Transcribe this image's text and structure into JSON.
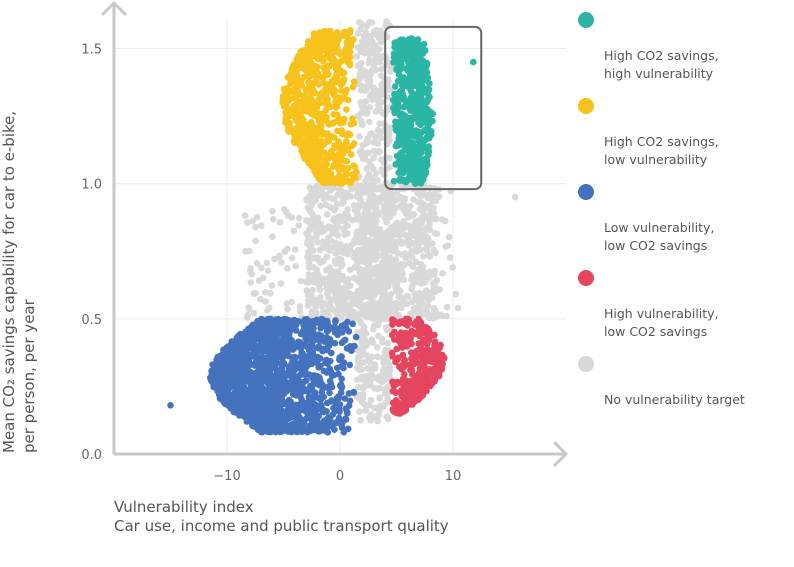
{
  "chart_data": {
    "type": "scatter",
    "xlabel": "Vulnerability index",
    "xlabel_sub": "Car use, income and public transport quality",
    "ylabel": "Mean CO₂ savings capability for car to e-bike,",
    "ylabel_sub": "per person, per year",
    "xlim": [
      -20,
      20
    ],
    "ylim": [
      0,
      1.65
    ],
    "x_ticks": [
      -10,
      0,
      10
    ],
    "x_tick_labels": [
      "−10",
      "0",
      "10"
    ],
    "y_ticks": [
      0.0,
      0.5,
      1.0,
      1.5
    ],
    "y_tick_labels": [
      "0.0",
      "0.5",
      "1.0",
      "1.5"
    ],
    "grid": true,
    "legend_position": "right",
    "highlight_box": {
      "x": [
        4,
        12.5
      ],
      "y": [
        0.98,
        1.58
      ]
    },
    "series": [
      {
        "name": "High CO2 savings,\nhigh vulnerability",
        "color": "#2ab5a5",
        "region": {
          "x": [
            4.5,
            9.0
          ],
          "y": [
            1.0,
            1.55
          ]
        },
        "outliers": [
          [
            11.8,
            1.45
          ]
        ]
      },
      {
        "name": "High CO2 savings,\nlow vulnerability",
        "color": "#f8c21c",
        "region": {
          "x": [
            -5.5,
            1.5
          ],
          "y": [
            1.0,
            1.58
          ]
        }
      },
      {
        "name": "Low vulnerability,\nlow CO2 savings",
        "color": "#4472be",
        "region": {
          "x": [
            -12,
            1.5
          ],
          "y": [
            0.07,
            0.5
          ]
        },
        "outliers": [
          [
            -15,
            0.18
          ]
        ]
      },
      {
        "name": "High vulnerability,\nlow CO2 savings",
        "color": "#e5455f",
        "region": {
          "x": [
            4.5,
            9.5
          ],
          "y": [
            0.15,
            0.5
          ]
        }
      },
      {
        "name": "No vulnerability target",
        "color": "#d9d9d9",
        "region": {
          "x": [
            -9,
            11
          ],
          "y": [
            0.1,
            1.62
          ]
        },
        "outliers": [
          [
            15.5,
            0.95
          ]
        ]
      }
    ]
  }
}
